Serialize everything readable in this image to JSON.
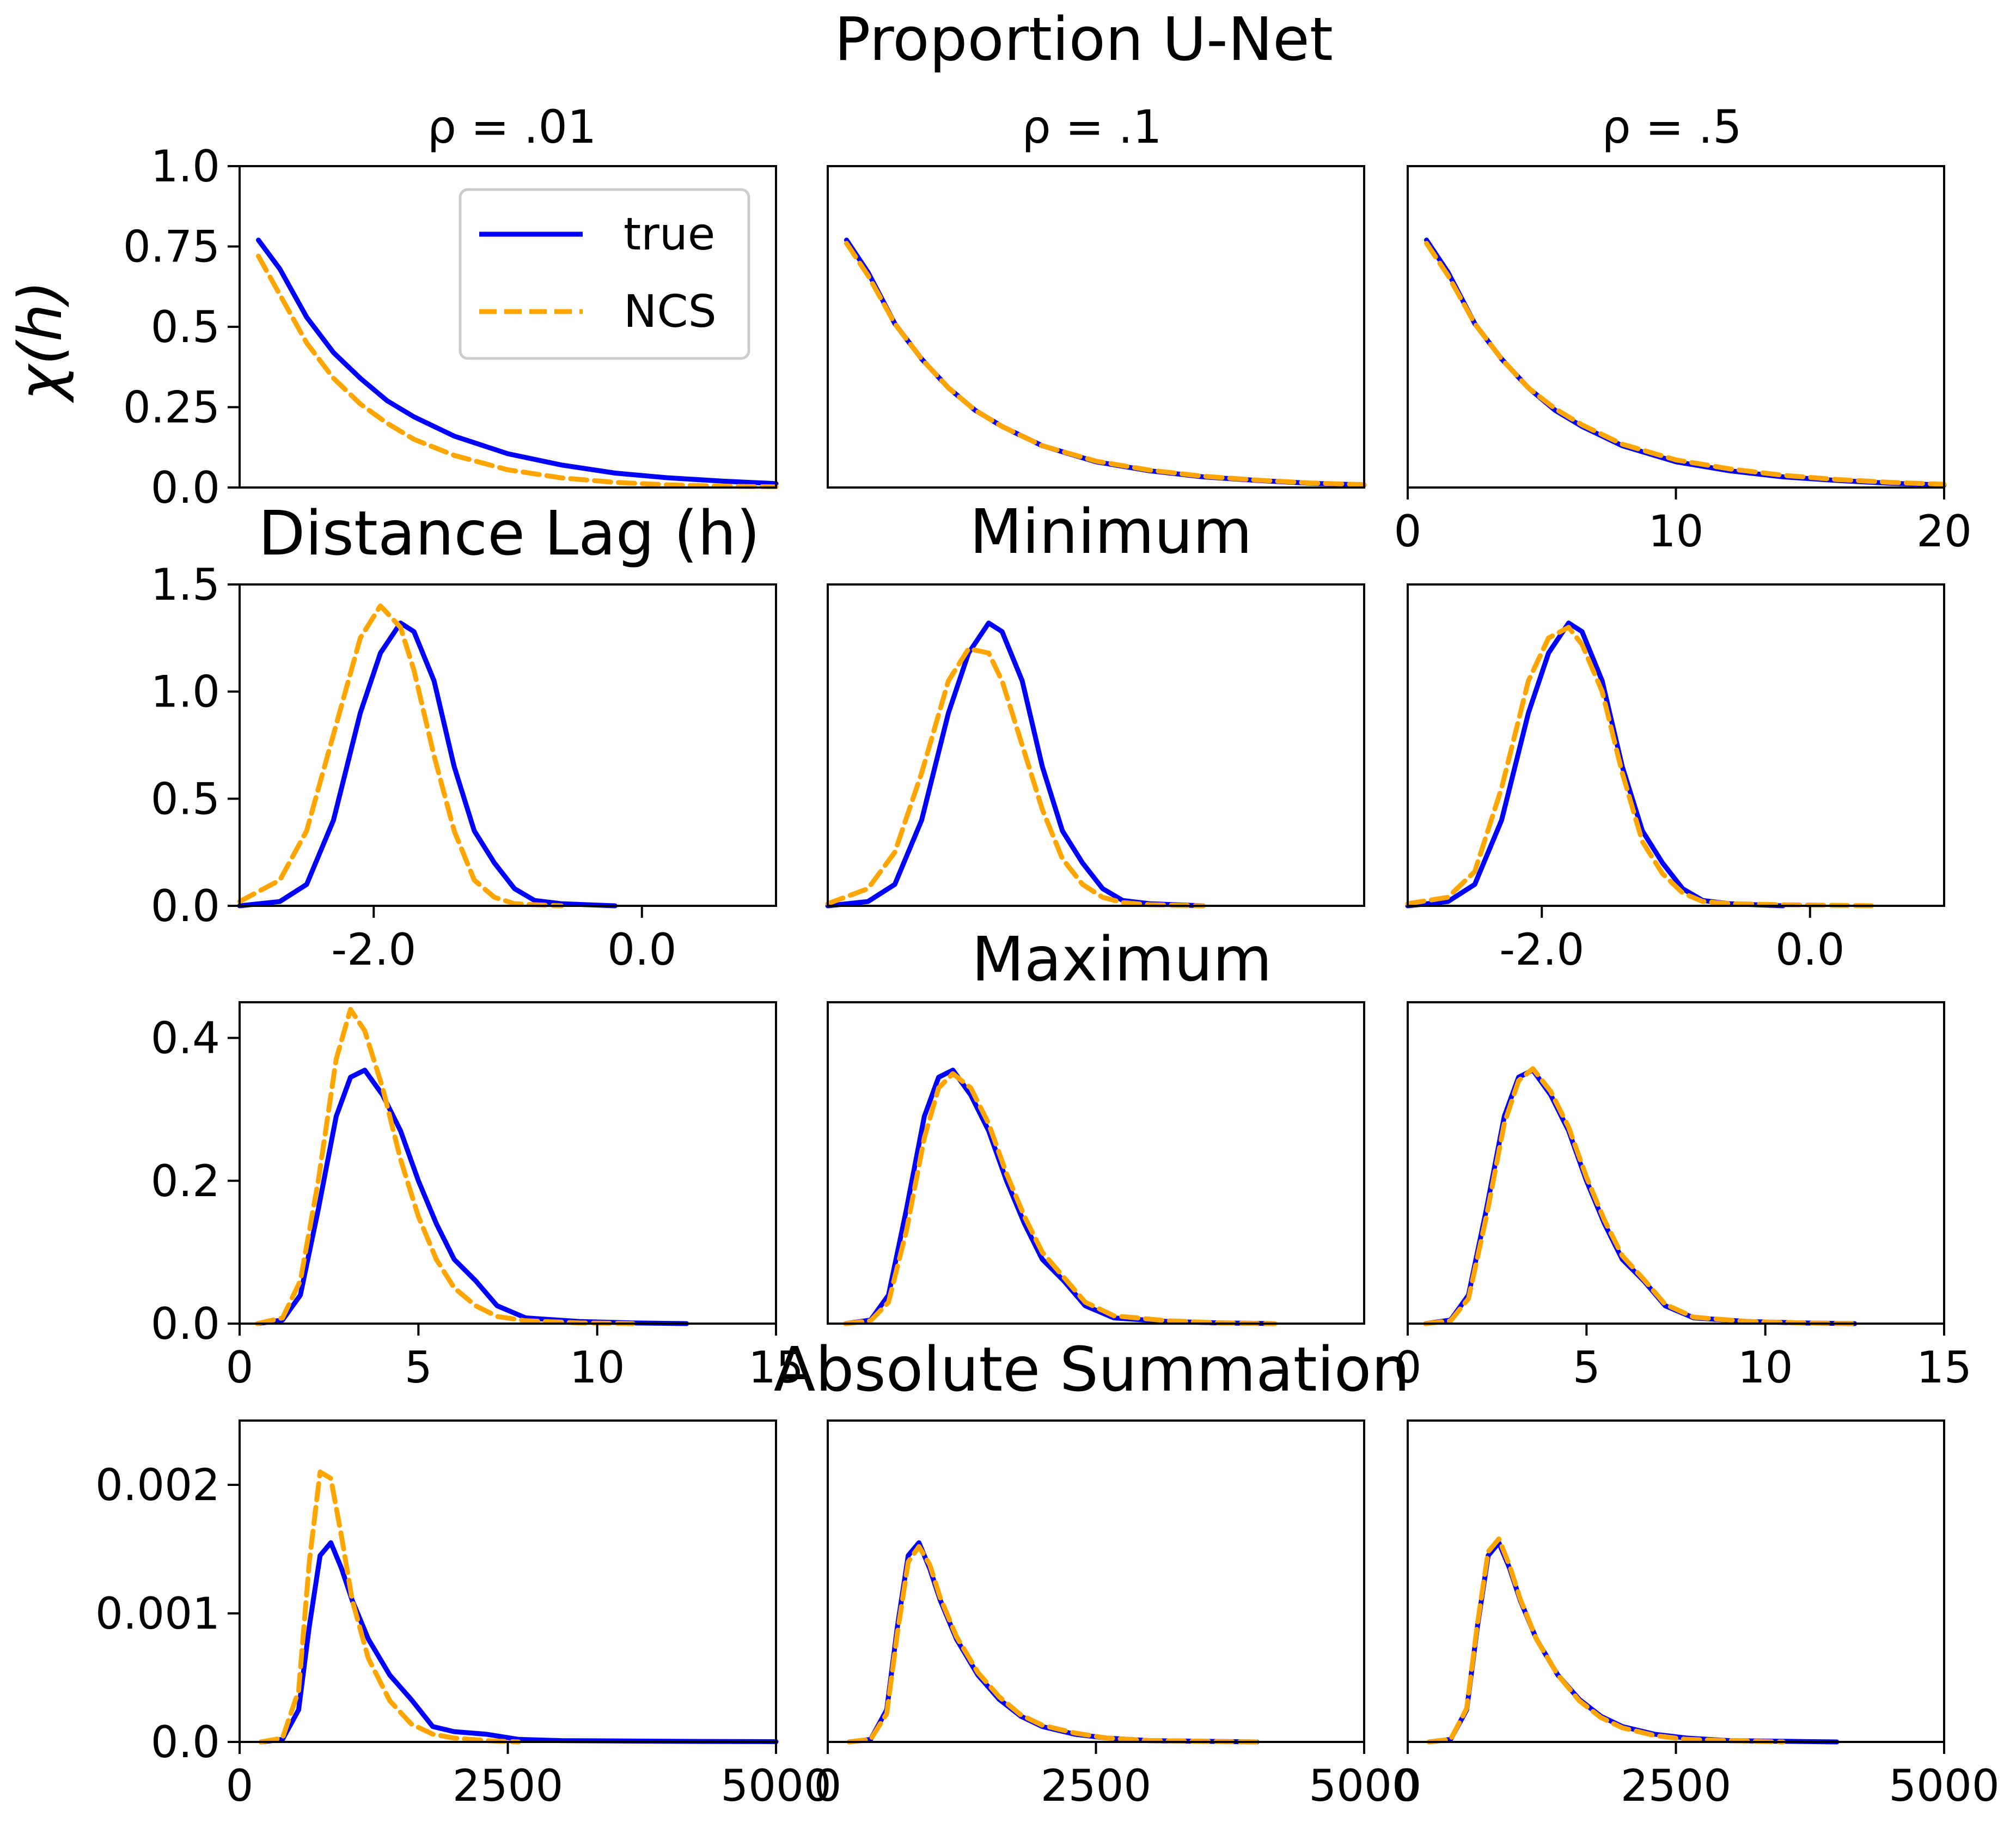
{
  "title": "Proportion U-Net",
  "ylabel": "χ(h)",
  "colors": {
    "true": "#0000ff",
    "NCS": "#ffa500"
  },
  "legend": {
    "position": "upper-right-of-first-panel",
    "entries": [
      "true",
      "NCS"
    ]
  },
  "column_titles": [
    "ρ = .01",
    "ρ = .1",
    "ρ = .5"
  ],
  "row_titles": [
    "Distance Lag (h)",
    "Minimum",
    "Maximum",
    "Absolute Summation"
  ],
  "chart_data": [
    {
      "type": "line",
      "rows": "extremal coefficient χ(h)",
      "xlim": [
        0,
        20
      ],
      "ylim": [
        0,
        1.0
      ],
      "xticks": [
        0,
        10,
        20
      ],
      "xtick_labels": [
        "0",
        "10",
        "20"
      ],
      "yticks": [
        0,
        0.25,
        0.5,
        0.75,
        1.0
      ],
      "ytick_labels": [
        "0.0",
        "0.25",
        "0.5",
        "0.75",
        "1.0"
      ],
      "x": [
        0.7,
        1.5,
        2.5,
        3.5,
        4.5,
        5.5,
        6.5,
        8,
        10,
        12,
        14,
        16,
        18,
        20
      ],
      "panels": [
        {
          "true": [
            0.77,
            0.68,
            0.53,
            0.42,
            0.34,
            0.27,
            0.22,
            0.16,
            0.105,
            0.07,
            0.045,
            0.03,
            0.02,
            0.012
          ],
          "NCS": [
            0.72,
            0.6,
            0.45,
            0.34,
            0.26,
            0.2,
            0.15,
            0.1,
            0.055,
            0.03,
            0.016,
            0.008,
            0.004,
            0.002
          ]
        },
        {
          "true": [
            0.77,
            0.67,
            0.51,
            0.4,
            0.31,
            0.24,
            0.19,
            0.13,
            0.08,
            0.052,
            0.033,
            0.022,
            0.013,
            0.008
          ],
          "NCS": [
            0.76,
            0.66,
            0.51,
            0.4,
            0.31,
            0.24,
            0.19,
            0.13,
            0.082,
            0.054,
            0.035,
            0.023,
            0.014,
            0.009
          ]
        },
        {
          "true": [
            0.77,
            0.67,
            0.51,
            0.4,
            0.31,
            0.24,
            0.19,
            0.13,
            0.08,
            0.052,
            0.033,
            0.022,
            0.013,
            0.008
          ],
          "NCS": [
            0.76,
            0.66,
            0.51,
            0.4,
            0.31,
            0.245,
            0.195,
            0.135,
            0.086,
            0.058,
            0.038,
            0.025,
            0.016,
            0.01
          ]
        }
      ]
    },
    {
      "type": "line",
      "rows": "density of Minimum",
      "xlim": [
        -3.0,
        1.0
      ],
      "ylim": [
        0,
        1.5
      ],
      "xticks": [
        -2.0,
        0.0
      ],
      "xtick_labels": [
        "-2.0",
        "0.0"
      ],
      "yticks": [
        0,
        0.5,
        1.0,
        1.5
      ],
      "ytick_labels": [
        "0.0",
        "0.5",
        "1.0",
        "1.5"
      ],
      "x": [
        -3.0,
        -2.7,
        -2.5,
        -2.3,
        -2.1,
        -1.95,
        -1.8,
        -1.7,
        -1.55,
        -1.4,
        -1.25,
        -1.1,
        -0.95,
        -0.8,
        -0.6,
        -0.2,
        0.5
      ],
      "panels": [
        {
          "true": [
            0.0,
            0.02,
            0.1,
            0.4,
            0.9,
            1.18,
            1.32,
            1.28,
            1.05,
            0.65,
            0.35,
            0.2,
            0.08,
            0.025,
            0.01,
            0.0,
            null
          ],
          "NCS": [
            0.02,
            0.12,
            0.35,
            0.8,
            1.25,
            1.4,
            1.3,
            1.1,
            0.7,
            0.35,
            0.12,
            0.04,
            0.01,
            0.005,
            0.0,
            null,
            null
          ]
        },
        {
          "true": [
            0.0,
            0.02,
            0.1,
            0.4,
            0.9,
            1.18,
            1.32,
            1.28,
            1.05,
            0.65,
            0.35,
            0.2,
            0.08,
            0.025,
            0.01,
            0.0,
            null
          ],
          "NCS": [
            0.01,
            0.08,
            0.25,
            0.62,
            1.05,
            1.2,
            1.18,
            1.05,
            0.75,
            0.45,
            0.22,
            0.1,
            0.04,
            0.015,
            0.005,
            0.0,
            null
          ]
        },
        {
          "true": [
            0.0,
            0.02,
            0.1,
            0.4,
            0.9,
            1.18,
            1.32,
            1.28,
            1.05,
            0.65,
            0.35,
            0.2,
            0.08,
            0.025,
            0.01,
            0.0,
            null
          ],
          "NCS": [
            0.01,
            0.04,
            0.16,
            0.55,
            1.05,
            1.25,
            1.3,
            1.22,
            1.0,
            0.62,
            0.3,
            0.15,
            0.06,
            0.02,
            0.01,
            0.005,
            0.0
          ]
        }
      ]
    },
    {
      "type": "line",
      "rows": "density of Maximum",
      "xlim": [
        0,
        15
      ],
      "ylim": [
        0,
        0.45
      ],
      "xticks": [
        0,
        5,
        10,
        15
      ],
      "xtick_labels": [
        "0",
        "5",
        "10",
        "15"
      ],
      "yticks": [
        0,
        0.2,
        0.4
      ],
      "ytick_labels": [
        "0.0",
        "0.2",
        "0.4"
      ],
      "x": [
        0.5,
        1.2,
        1.7,
        2.2,
        2.7,
        3.1,
        3.5,
        4.0,
        4.5,
        5.0,
        5.5,
        6.0,
        6.6,
        7.2,
        8.0,
        9.5,
        11.0,
        12.5,
        14.0
      ],
      "panels": [
        {
          "true": [
            0.0,
            0.005,
            0.04,
            0.16,
            0.29,
            0.345,
            0.355,
            0.32,
            0.27,
            0.2,
            0.14,
            0.09,
            0.06,
            0.025,
            0.008,
            0.003,
            0.001,
            0.0,
            null
          ],
          "NCS": [
            0.0,
            0.008,
            0.06,
            0.2,
            0.37,
            0.44,
            0.41,
            0.33,
            0.23,
            0.15,
            0.09,
            0.05,
            0.025,
            0.01,
            0.004,
            0.001,
            0.0,
            null,
            null
          ]
        },
        {
          "true": [
            0.0,
            0.005,
            0.04,
            0.16,
            0.29,
            0.345,
            0.355,
            0.32,
            0.27,
            0.2,
            0.14,
            0.09,
            0.06,
            0.025,
            0.008,
            0.003,
            0.001,
            0.0,
            null
          ],
          "NCS": [
            0.0,
            0.004,
            0.03,
            0.13,
            0.26,
            0.33,
            0.35,
            0.33,
            0.28,
            0.21,
            0.15,
            0.1,
            0.065,
            0.03,
            0.011,
            0.004,
            0.001,
            0.0,
            null
          ]
        },
        {
          "true": [
            0.0,
            0.005,
            0.04,
            0.16,
            0.29,
            0.345,
            0.355,
            0.32,
            0.27,
            0.2,
            0.14,
            0.09,
            0.06,
            0.025,
            0.008,
            0.003,
            0.001,
            0.0,
            null
          ],
          "NCS": [
            0.0,
            0.004,
            0.035,
            0.15,
            0.28,
            0.34,
            0.357,
            0.325,
            0.275,
            0.205,
            0.145,
            0.095,
            0.062,
            0.027,
            0.009,
            0.003,
            0.001,
            0.0,
            null
          ]
        }
      ]
    },
    {
      "type": "line",
      "rows": "density of Absolute Summation",
      "xlim": [
        0,
        5000
      ],
      "ylim": [
        0,
        0.0025
      ],
      "xticks": [
        0,
        2500,
        5000
      ],
      "xtick_labels": [
        "0",
        "2500",
        "5000"
      ],
      "yticks": [
        0,
        0.001,
        0.002
      ],
      "ytick_labels": [
        "0.0",
        "0.001",
        "0.002"
      ],
      "x": [
        200,
        400,
        550,
        650,
        750,
        850,
        950,
        1050,
        1200,
        1400,
        1600,
        1800,
        2000,
        2300,
        2600,
        3000,
        3500,
        4000,
        5000
      ],
      "panels": [
        {
          "true": [
            0.0,
            2e-05,
            0.00025,
            0.0009,
            0.00145,
            0.00155,
            0.00135,
            0.0011,
            0.0008,
            0.00052,
            0.00033,
            0.00012,
            8e-05,
            6e-05,
            2e-05,
            1e-05,
            8e-06,
            5e-06,
            2e-06
          ],
          "NCS": [
            0.0,
            3e-05,
            0.0004,
            0.0014,
            0.0021,
            0.00205,
            0.0016,
            0.0011,
            0.00065,
            0.00032,
            0.00014,
            6e-05,
            3e-05,
            1e-05,
            0.0,
            null,
            null,
            null,
            null
          ]
        },
        {
          "true": [
            0.0,
            2e-05,
            0.00025,
            0.0009,
            0.00145,
            0.00155,
            0.00135,
            0.0011,
            0.0008,
            0.00052,
            0.00033,
            0.0002,
            0.00012,
            6e-05,
            3e-05,
            1e-05,
            5e-06,
            0.0,
            null
          ],
          "NCS": [
            0.0,
            2e-05,
            0.00022,
            0.00085,
            0.0014,
            0.00152,
            0.00138,
            0.00112,
            0.00082,
            0.00054,
            0.00035,
            0.00021,
            0.00013,
            7e-05,
            3e-05,
            1e-05,
            5e-06,
            0.0,
            null
          ]
        },
        {
          "true": [
            0.0,
            2e-05,
            0.00025,
            0.0009,
            0.00145,
            0.00155,
            0.00135,
            0.0011,
            0.0008,
            0.00052,
            0.00033,
            0.0002,
            0.00012,
            6e-05,
            3e-05,
            1e-05,
            5e-06,
            0.0,
            null
          ],
          "NCS": [
            0.0,
            2e-05,
            0.00026,
            0.00092,
            0.00148,
            0.00158,
            0.00137,
            0.00111,
            0.0008,
            0.00052,
            0.00032,
            0.00019,
            0.00011,
            5e-05,
            2e-05,
            1e-05,
            0.0,
            null,
            null
          ]
        }
      ]
    }
  ]
}
